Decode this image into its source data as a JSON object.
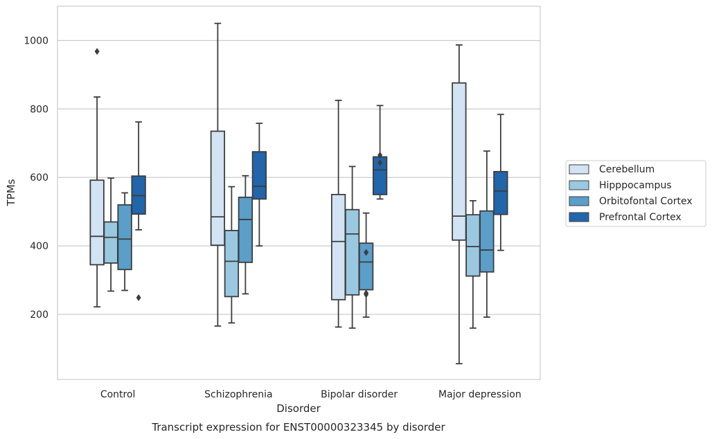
{
  "chart_data": {
    "type": "box",
    "caption": "Transcript expression for ENST00000323345 by disorder",
    "xlabel": "Disorder",
    "ylabel": "TPMs",
    "ylim": [
      10,
      1100
    ],
    "yticks": [
      200,
      400,
      600,
      800,
      1000
    ],
    "grid": true,
    "legend_position": "right",
    "categories": [
      "Control",
      "Schizophrenia",
      "Bipolar disorder",
      "Major depression"
    ],
    "series": [
      {
        "name": "Cerebellum",
        "color": "#d2e3f3",
        "boxes": [
          {
            "whisker_low": 222,
            "q1": 345,
            "median": 428,
            "q3": 592,
            "whisker_high": 835,
            "outliers": [
              968
            ]
          },
          {
            "whisker_low": 166,
            "q1": 402,
            "median": 485,
            "q3": 735,
            "whisker_high": 1050,
            "outliers": []
          },
          {
            "whisker_low": 163,
            "q1": 243,
            "median": 413,
            "q3": 550,
            "whisker_high": 825,
            "outliers": []
          },
          {
            "whisker_low": 56,
            "q1": 417,
            "median": 487,
            "q3": 876,
            "whisker_high": 987,
            "outliers": []
          }
        ]
      },
      {
        "name": "Hipppocampus",
        "color": "#9ac8e0",
        "boxes": [
          {
            "whisker_low": 268,
            "q1": 350,
            "median": 425,
            "q3": 470,
            "whisker_high": 598,
            "outliers": []
          },
          {
            "whisker_low": 175,
            "q1": 252,
            "median": 355,
            "q3": 445,
            "whisker_high": 573,
            "outliers": []
          },
          {
            "whisker_low": 160,
            "q1": 257,
            "median": 435,
            "q3": 506,
            "whisker_high": 632,
            "outliers": []
          },
          {
            "whisker_low": 160,
            "q1": 312,
            "median": 398,
            "q3": 491,
            "whisker_high": 532,
            "outliers": []
          }
        ]
      },
      {
        "name": "Orbitofontal Cortex",
        "color": "#5a9ec9",
        "boxes": [
          {
            "whisker_low": 270,
            "q1": 331,
            "median": 420,
            "q3": 520,
            "whisker_high": 555,
            "outliers": []
          },
          {
            "whisker_low": 260,
            "q1": 352,
            "median": 477,
            "q3": 542,
            "whisker_high": 605,
            "outliers": []
          },
          {
            "whisker_low": 192,
            "q1": 272,
            "median": 353,
            "q3": 408,
            "whisker_high": 496,
            "outliers": [
              381,
              258,
              262
            ]
          },
          {
            "whisker_low": 192,
            "q1": 324,
            "median": 388,
            "q3": 502,
            "whisker_high": 677,
            "outliers": []
          }
        ]
      },
      {
        "name": "Prefrontal Cortex",
        "color": "#2165ab",
        "boxes": [
          {
            "whisker_low": 447,
            "q1": 493,
            "median": 547,
            "q3": 604,
            "whisker_high": 762,
            "outliers": [
              249
            ]
          },
          {
            "whisker_low": 400,
            "q1": 537,
            "median": 574,
            "q3": 675,
            "whisker_high": 758,
            "outliers": []
          },
          {
            "whisker_low": 537,
            "q1": 550,
            "median": 622,
            "q3": 660,
            "whisker_high": 810,
            "outliers": [
              665,
              643
            ]
          },
          {
            "whisker_low": 387,
            "q1": 492,
            "median": 560,
            "q3": 617,
            "whisker_high": 784,
            "outliers": []
          }
        ]
      }
    ]
  }
}
